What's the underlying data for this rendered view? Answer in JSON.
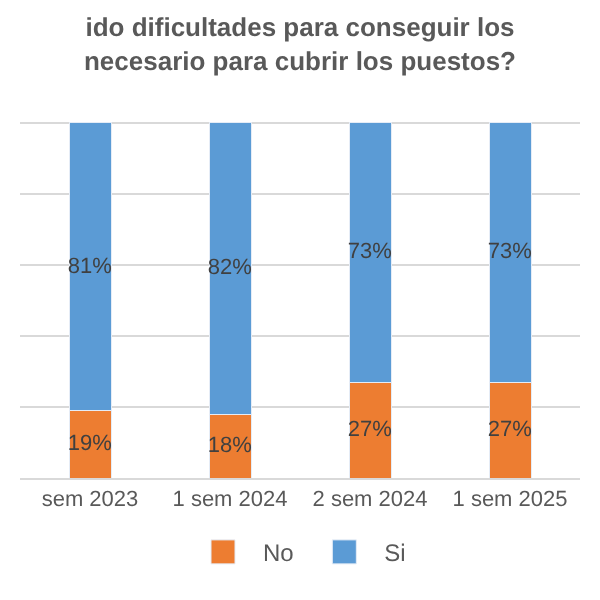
{
  "chart_data": {
    "type": "bar",
    "stacked": true,
    "title": "ido dificultades para conseguir los\nnecesario para cubrir los puestos?",
    "categories": [
      "sem 2023",
      "1 sem 2024",
      "2 sem 2024",
      "1 sem 2025"
    ],
    "series": [
      {
        "name": "No",
        "color": "#ed7d31",
        "values": [
          19,
          18,
          27,
          27
        ],
        "value_labels": [
          "19%",
          "18%",
          "27%",
          "27%"
        ]
      },
      {
        "name": "Si",
        "color": "#5b9bd5",
        "values": [
          81,
          82,
          73,
          73
        ],
        "value_labels": [
          "81%",
          "82%",
          "73%",
          "73%"
        ]
      }
    ],
    "grid": "y",
    "legend": "bottom",
    "tick_labels": "x"
  }
}
